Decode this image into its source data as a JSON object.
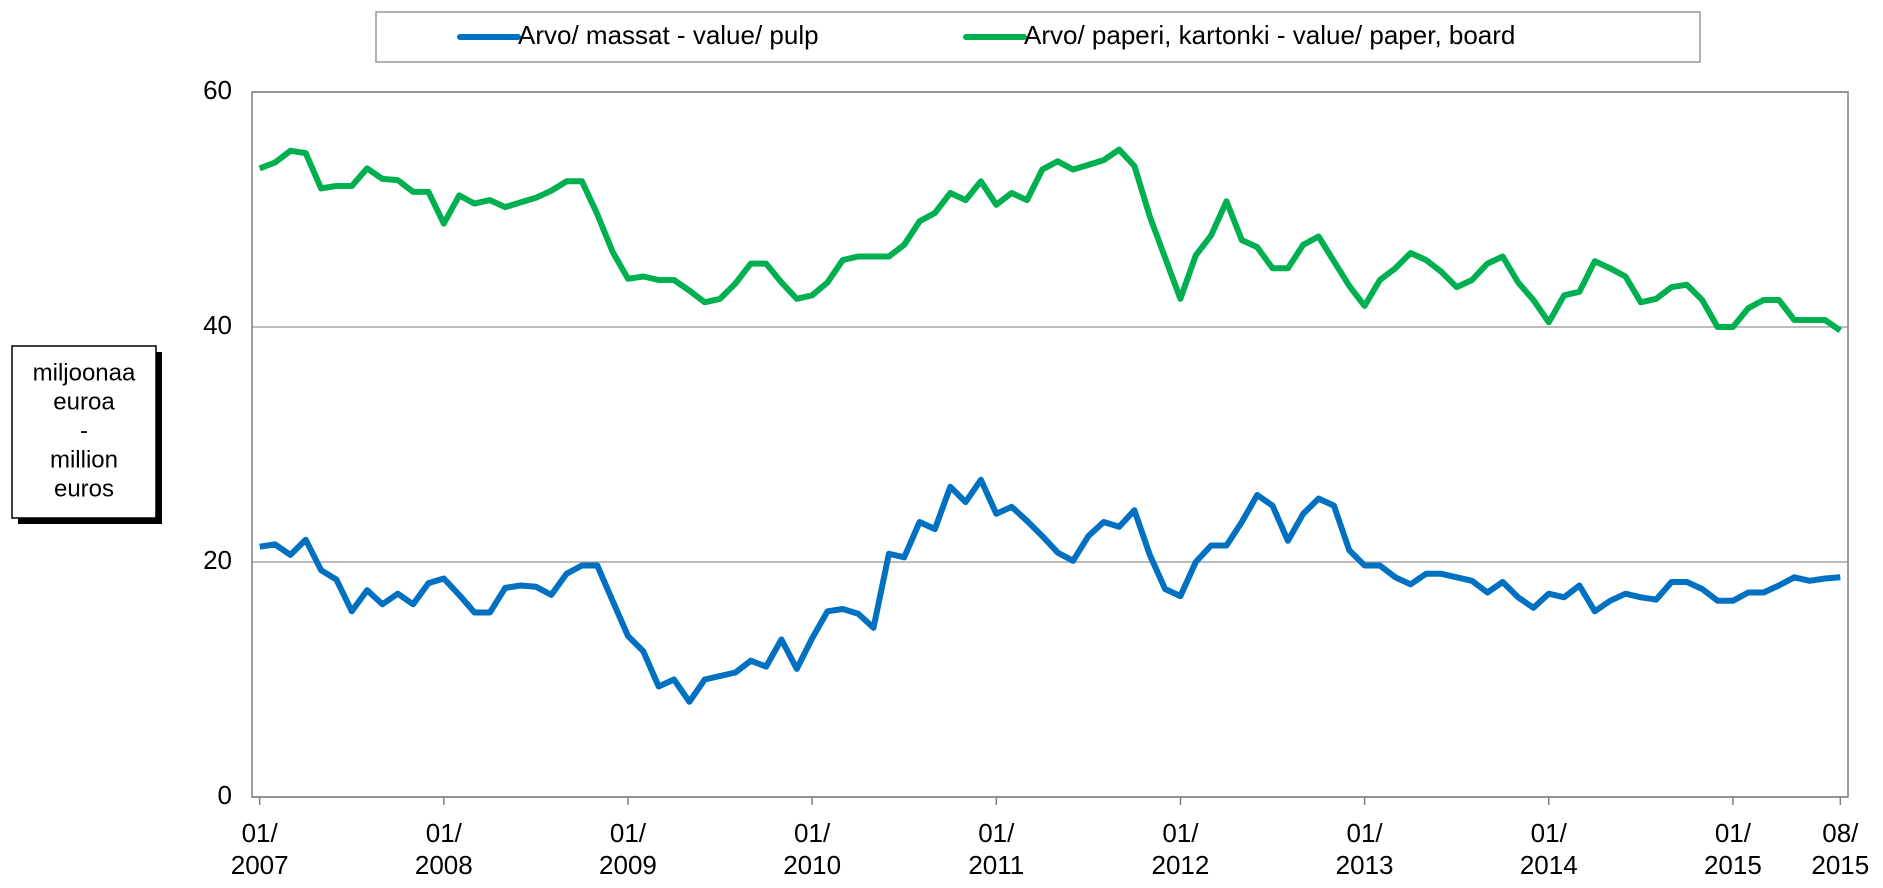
{
  "chart_data": {
    "type": "line",
    "ylabel_lines": [
      "miljoonaa",
      "euroa",
      "-",
      "million",
      "euros"
    ],
    "categories": [
      "01/\n2007",
      null,
      null,
      null,
      null,
      null,
      null,
      null,
      null,
      null,
      null,
      null,
      "01/\n2008",
      null,
      null,
      null,
      null,
      null,
      null,
      null,
      null,
      null,
      null,
      null,
      "01/\n2009",
      null,
      null,
      null,
      null,
      null,
      null,
      null,
      null,
      null,
      null,
      null,
      "01/\n2010",
      null,
      null,
      null,
      null,
      null,
      null,
      null,
      null,
      null,
      null,
      null,
      "01/\n2011",
      null,
      null,
      null,
      null,
      null,
      null,
      null,
      null,
      null,
      null,
      null,
      "01/\n2012",
      null,
      null,
      null,
      null,
      null,
      null,
      null,
      null,
      null,
      null,
      null,
      "01/\n2013",
      null,
      null,
      null,
      null,
      null,
      null,
      null,
      null,
      null,
      null,
      null,
      "01/\n2014",
      null,
      null,
      null,
      null,
      null,
      null,
      null,
      null,
      null,
      null,
      null,
      "01/\n2015",
      null,
      null,
      null,
      null,
      null,
      null,
      "08/\n2015"
    ],
    "series": [
      {
        "name": "Arvo/ massat - value/ pulp",
        "color": "#0070c0",
        "values": [
          21.3,
          21.5,
          20.6,
          21.9,
          19.3,
          18.5,
          15.8,
          17.6,
          16.4,
          17.3,
          16.4,
          18.2,
          18.6,
          17.2,
          15.7,
          15.7,
          17.8,
          18,
          17.9,
          17.2,
          19,
          19.7,
          19.7,
          16.7,
          13.7,
          12.4,
          9.4,
          10,
          8.1,
          10,
          10.3,
          10.6,
          11.6,
          11.1,
          13.4,
          10.9,
          13.5,
          15.8,
          16,
          15.6,
          14.4,
          20.7,
          20.4,
          23.4,
          22.8,
          26.4,
          25.1,
          27,
          24.1,
          24.7,
          23.5,
          22.2,
          20.8,
          20.1,
          22.2,
          23.4,
          23,
          24.4,
          20.6,
          17.7,
          17.1,
          20,
          21.4,
          21.4,
          23.4,
          25.7,
          24.8,
          21.8,
          24.1,
          25.4,
          24.8,
          21,
          19.7,
          19.7,
          18.7,
          18.1,
          19,
          19,
          18.7,
          18.4,
          17.4,
          18.3,
          17,
          16.1,
          17.3,
          17,
          18,
          15.8,
          16.7,
          17.3,
          17,
          16.8,
          18.3,
          18.3,
          17.7,
          16.7,
          16.7,
          17.4,
          17.4,
          18,
          18.7,
          18.4,
          18.6,
          18.7
        ]
      },
      {
        "name": "Arvo/ paperi, kartonki - value/ paper, board",
        "color": "#00b050",
        "values": [
          53.5,
          54,
          55,
          54.8,
          51.8,
          52,
          52,
          53.5,
          52.6,
          52.5,
          51.5,
          51.5,
          48.8,
          51.2,
          50.5,
          50.8,
          50.2,
          50.6,
          51,
          51.6,
          52.4,
          52.4,
          49.6,
          46.4,
          44.1,
          44.3,
          44,
          44,
          43.1,
          42.1,
          42.4,
          43.7,
          45.4,
          45.4,
          43.8,
          42.4,
          42.7,
          43.8,
          45.7,
          46,
          46,
          46,
          47,
          49,
          49.7,
          51.4,
          50.8,
          52.4,
          50.4,
          51.4,
          50.8,
          53.4,
          54.1,
          53.4,
          53.8,
          54.2,
          55.1,
          53.7,
          49.4,
          45.9,
          42.4,
          46.1,
          47.8,
          50.7,
          47.4,
          46.8,
          45,
          45,
          47,
          47.7,
          45.6,
          43.5,
          41.8,
          44,
          45,
          46.3,
          45.7,
          44.7,
          43.4,
          44,
          45.4,
          46,
          43.8,
          42.3,
          40.4,
          42.7,
          43,
          45.6,
          45,
          44.3,
          42.1,
          42.4,
          43.4,
          43.6,
          42.3,
          40,
          40,
          41.6,
          42.3,
          42.3,
          40.6,
          40.6,
          40.6,
          39.7
        ]
      }
    ],
    "ylim": [
      0,
      60
    ],
    "yticks": [
      0,
      20,
      40,
      60
    ],
    "grid": true,
    "legend": "top"
  }
}
